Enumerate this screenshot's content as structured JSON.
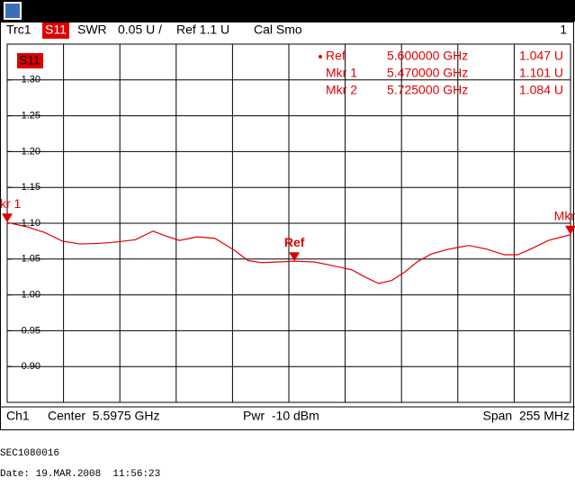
{
  "chart_data": {
    "type": "line",
    "header": {
      "trace": "Trc1",
      "param": "S11",
      "format": "SWR",
      "scale": "0.05 U /",
      "ref": "Ref 1.1 U",
      "cal": "Cal Smo",
      "channel_no": "1"
    },
    "plot_label": "S11",
    "x": [
      5.47,
      5.479,
      5.487,
      5.495,
      5.503,
      5.512,
      5.52,
      5.528,
      5.536,
      5.542,
      5.548,
      5.556,
      5.564,
      5.573,
      5.579,
      5.585,
      5.593,
      5.6,
      5.609,
      5.617,
      5.626,
      5.632,
      5.638,
      5.644,
      5.65,
      5.656,
      5.662,
      5.67,
      5.679,
      5.687,
      5.695,
      5.701,
      5.707,
      5.715,
      5.725
    ],
    "series": [
      {
        "name": "S11",
        "color": "#e00000",
        "values": [
          1.101,
          1.095,
          1.087,
          1.075,
          1.071,
          1.072,
          1.074,
          1.077,
          1.089,
          1.082,
          1.076,
          1.081,
          1.079,
          1.062,
          1.048,
          1.045,
          1.046,
          1.047,
          1.046,
          1.041,
          1.035,
          1.025,
          1.016,
          1.02,
          1.032,
          1.047,
          1.057,
          1.064,
          1.069,
          1.064,
          1.056,
          1.056,
          1.064,
          1.076,
          1.084
        ]
      }
    ],
    "xlim": [
      5.47,
      5.725
    ],
    "ylim": [
      0.85,
      1.35
    ],
    "yticks": [
      {
        "value": 1.3,
        "label": "1.30"
      },
      {
        "value": 1.25,
        "label": "1.25"
      },
      {
        "value": 1.2,
        "label": "1.20"
      },
      {
        "value": 1.15,
        "label": "1.15"
      },
      {
        "value": 1.1,
        "label": "1.10"
      },
      {
        "value": 1.05,
        "label": "1.05"
      },
      {
        "value": 1.0,
        "label": "1.00"
      },
      {
        "value": 0.95,
        "label": "0.95"
      },
      {
        "value": 0.9,
        "label": "0.90"
      }
    ],
    "grid": true,
    "markers": [
      {
        "name": "Ref",
        "tag": "Ref",
        "x": 5.6,
        "value": 1.047,
        "x_label": "5.600000 GHz",
        "value_label": "1.047 U"
      },
      {
        "name": "Mkr 1",
        "tag": "kr 1",
        "x": 5.47,
        "value": 1.101,
        "x_label": "5.470000 GHz",
        "value_label": "1.101 U"
      },
      {
        "name": "Mkr 2",
        "tag": "Mkr",
        "x": 5.725,
        "value": 1.084,
        "x_label": "5.725000 GHz",
        "value_label": "1.084 U"
      }
    ],
    "footer": {
      "channel": "Ch1",
      "center": "Center  5.5975 GHz",
      "power": "Pwr  -10 dBm",
      "span": "Span  255 MHz"
    },
    "device_id": "SEC1080016",
    "date": "Date: 19.MAR.2008  11:56:23"
  }
}
